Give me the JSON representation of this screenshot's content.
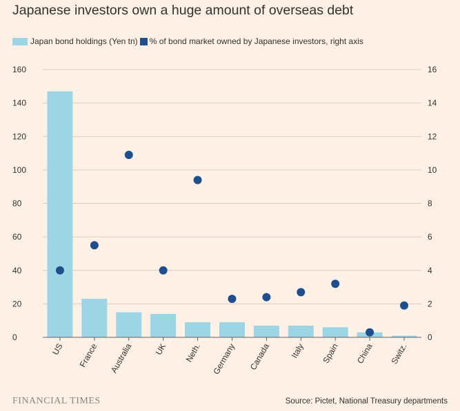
{
  "header": {
    "title": "Japanese investors own a huge amount of overseas debt"
  },
  "legend": [
    {
      "label": "Japan bond holdings (Yen tn)",
      "color": "#9dd4e6"
    },
    {
      "label": "% of bond market owned by Japanese investors, right axis",
      "color": "#1f4e8c"
    }
  ],
  "footer": {
    "brand": "FINANCIAL TIMES",
    "source": "Source: Pictet, National Treasury departments"
  },
  "chart_data": {
    "type": "bar",
    "title": "Japanese investors own a huge amount of overseas debt",
    "categories": [
      "US",
      "France",
      "Australia",
      "UK",
      "Neth.",
      "Germany",
      "Canada",
      "Italy",
      "Spain",
      "China",
      "Switz."
    ],
    "series": [
      {
        "name": "Japan bond holdings (Yen tn)",
        "kind": "bar",
        "axis": "left",
        "color": "#9dd4e6",
        "values": [
          147,
          23,
          15,
          14,
          9,
          9,
          7,
          7,
          6,
          3,
          1
        ]
      },
      {
        "name": "% of bond market owned by Japanese investors, right axis",
        "kind": "scatter",
        "axis": "right",
        "color": "#1f4e8c",
        "values": [
          4.0,
          5.5,
          10.9,
          4.0,
          9.4,
          2.3,
          2.4,
          2.7,
          3.2,
          0.3,
          1.9
        ]
      }
    ],
    "y_left": {
      "min": 0,
      "max": 160,
      "ticks": [
        "0",
        "20",
        "40",
        "60",
        "80",
        "100",
        "120",
        "140",
        "160"
      ]
    },
    "y_right": {
      "min": 0,
      "max": 16,
      "ticks": [
        "0",
        "2",
        "4",
        "6",
        "8",
        "10",
        "12",
        "14",
        "16"
      ]
    },
    "xlabel": "",
    "ylabel": "",
    "grid": true,
    "legend_position": "top-left"
  }
}
